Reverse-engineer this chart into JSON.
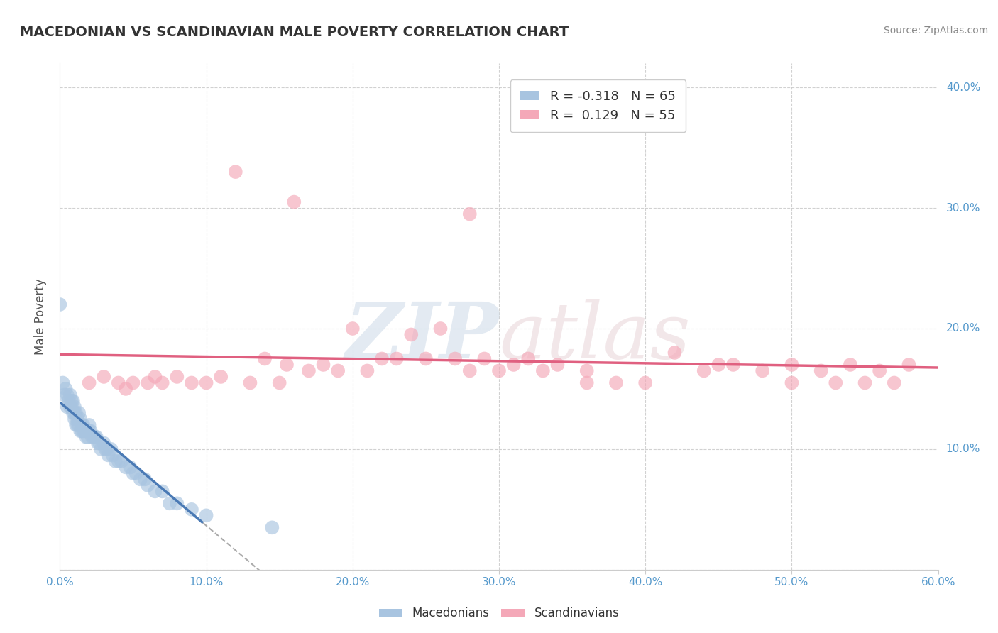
{
  "title": "MACEDONIAN VS SCANDINAVIAN MALE POVERTY CORRELATION CHART",
  "source": "Source: ZipAtlas.com",
  "ylabel": "Male Poverty",
  "xlim": [
    0.0,
    0.6
  ],
  "ylim": [
    0.0,
    0.42
  ],
  "x_ticks": [
    0.0,
    0.1,
    0.2,
    0.3,
    0.4,
    0.5,
    0.6
  ],
  "x_tick_labels": [
    "0.0%",
    "10.0%",
    "20.0%",
    "30.0%",
    "40.0%",
    "50.0%",
    "60.0%"
  ],
  "y_ticks": [
    0.1,
    0.2,
    0.3,
    0.4
  ],
  "y_tick_labels_right": [
    "10.0%",
    "20.0%",
    "30.0%",
    "40.0%"
  ],
  "macedonian_R": -0.318,
  "macedonian_N": 65,
  "scandinavian_R": 0.129,
  "scandinavian_N": 55,
  "macedonian_color": "#a8c4e0",
  "scandinavian_color": "#f4a8b8",
  "macedonian_line_color": "#4a7ab5",
  "scandinavian_line_color": "#e06080",
  "background_color": "#ffffff",
  "grid_color": "#cccccc",
  "mac_x": [
    0.0,
    0.002,
    0.003,
    0.004,
    0.005,
    0.005,
    0.006,
    0.007,
    0.007,
    0.008,
    0.008,
    0.009,
    0.009,
    0.01,
    0.01,
    0.01,
    0.011,
    0.011,
    0.012,
    0.012,
    0.013,
    0.013,
    0.014,
    0.014,
    0.015,
    0.015,
    0.016,
    0.016,
    0.017,
    0.018,
    0.018,
    0.019,
    0.02,
    0.02,
    0.021,
    0.022,
    0.023,
    0.024,
    0.025,
    0.026,
    0.027,
    0.028,
    0.03,
    0.031,
    0.032,
    0.033,
    0.035,
    0.036,
    0.038,
    0.04,
    0.042,
    0.045,
    0.048,
    0.05,
    0.052,
    0.055,
    0.058,
    0.06,
    0.065,
    0.07,
    0.075,
    0.08,
    0.09,
    0.1,
    0.145
  ],
  "mac_y": [
    0.22,
    0.155,
    0.145,
    0.15,
    0.145,
    0.135,
    0.14,
    0.145,
    0.135,
    0.14,
    0.135,
    0.14,
    0.13,
    0.135,
    0.13,
    0.125,
    0.13,
    0.12,
    0.125,
    0.12,
    0.13,
    0.12,
    0.125,
    0.115,
    0.12,
    0.115,
    0.12,
    0.115,
    0.115,
    0.115,
    0.11,
    0.11,
    0.12,
    0.115,
    0.115,
    0.11,
    0.11,
    0.11,
    0.11,
    0.105,
    0.105,
    0.1,
    0.105,
    0.1,
    0.1,
    0.095,
    0.1,
    0.095,
    0.09,
    0.09,
    0.09,
    0.085,
    0.085,
    0.08,
    0.08,
    0.075,
    0.075,
    0.07,
    0.065,
    0.065,
    0.055,
    0.055,
    0.05,
    0.045,
    0.035
  ],
  "scan_x": [
    0.02,
    0.03,
    0.04,
    0.045,
    0.05,
    0.06,
    0.065,
    0.07,
    0.08,
    0.09,
    0.1,
    0.11,
    0.12,
    0.13,
    0.14,
    0.15,
    0.155,
    0.16,
    0.17,
    0.18,
    0.19,
    0.2,
    0.21,
    0.22,
    0.23,
    0.24,
    0.25,
    0.26,
    0.27,
    0.28,
    0.29,
    0.3,
    0.31,
    0.32,
    0.33,
    0.34,
    0.36,
    0.38,
    0.4,
    0.42,
    0.44,
    0.45,
    0.46,
    0.48,
    0.5,
    0.5,
    0.52,
    0.53,
    0.54,
    0.55,
    0.56,
    0.57,
    0.58,
    0.28,
    0.36
  ],
  "scan_y": [
    0.155,
    0.16,
    0.155,
    0.15,
    0.155,
    0.155,
    0.16,
    0.155,
    0.16,
    0.155,
    0.155,
    0.16,
    0.33,
    0.155,
    0.175,
    0.155,
    0.17,
    0.305,
    0.165,
    0.17,
    0.165,
    0.2,
    0.165,
    0.175,
    0.175,
    0.195,
    0.175,
    0.2,
    0.175,
    0.165,
    0.175,
    0.165,
    0.17,
    0.175,
    0.165,
    0.17,
    0.155,
    0.155,
    0.155,
    0.18,
    0.165,
    0.17,
    0.17,
    0.165,
    0.17,
    0.155,
    0.165,
    0.155,
    0.17,
    0.155,
    0.165,
    0.155,
    0.17,
    0.295,
    0.165
  ]
}
